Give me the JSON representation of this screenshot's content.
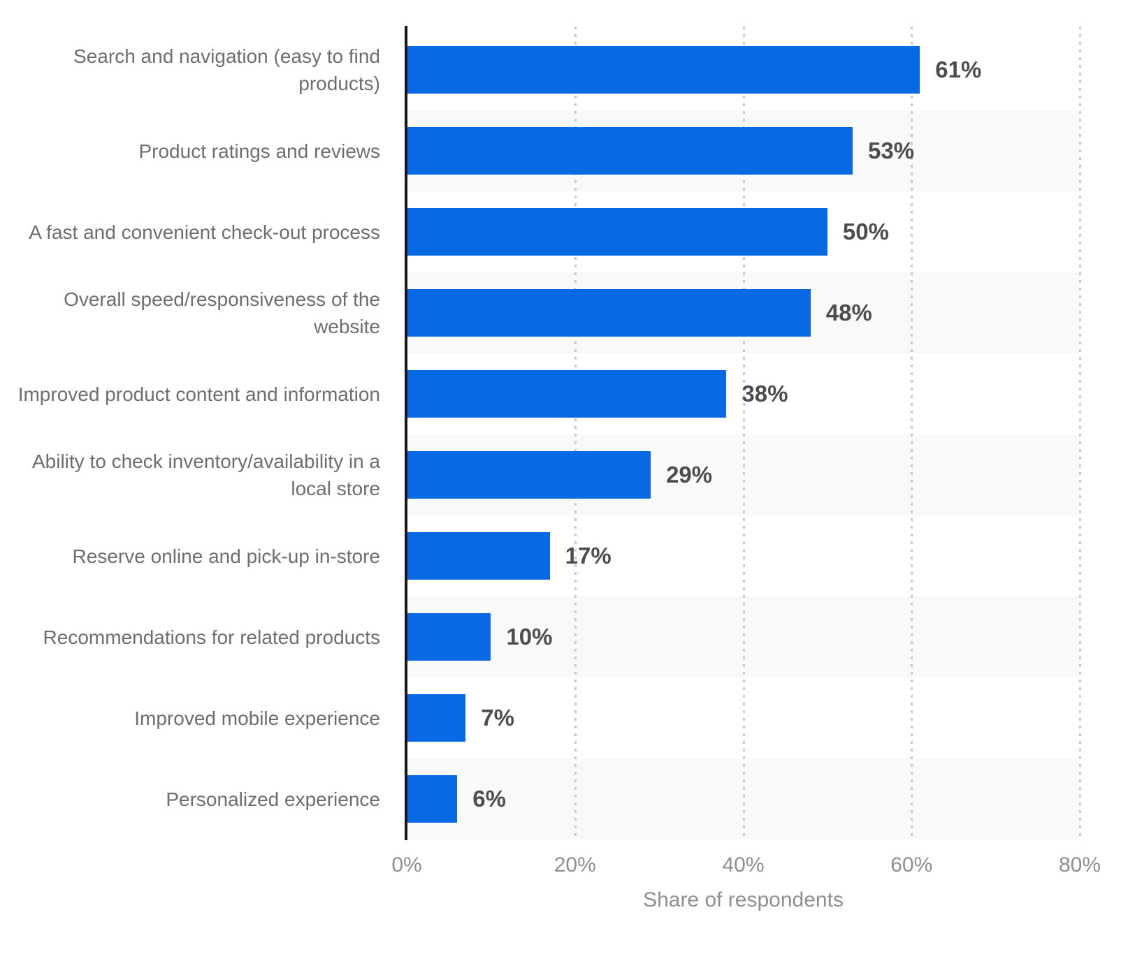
{
  "chart_data": {
    "type": "bar",
    "orientation": "horizontal",
    "title": "",
    "categories": [
      "Search and navigation (easy to find products)",
      "Product ratings and reviews",
      "A fast and convenient check-out process",
      "Overall speed/responsiveness of the website",
      "Improved product content and information",
      "Ability to check inventory/availability in a local store",
      "Reserve online and pick-up in-store",
      "Recommendations for related products",
      "Improved mobile experience",
      "Personalized experience"
    ],
    "values": [
      61,
      53,
      50,
      48,
      38,
      29,
      17,
      10,
      7,
      6
    ],
    "value_labels": [
      "61%",
      "53%",
      "50%",
      "48%",
      "38%",
      "29%",
      "17%",
      "10%",
      "7%",
      "6%"
    ],
    "xlabel": "Share of respondents",
    "ylabel": "",
    "xlim": [
      0,
      80
    ],
    "x_tick_labels": [
      "0%",
      "20%",
      "40%",
      "60%",
      "80%"
    ],
    "x_tick_values": [
      0,
      20,
      40,
      60,
      80
    ],
    "grid": "vertical-dotted",
    "legend": "none",
    "row_striping": "alternate-even-rows-shaded",
    "colors": {
      "bar": "#0769e4",
      "row_stripe": "#f9f9f9",
      "background": "#ffffff",
      "category_label": "#6e6e6e",
      "value_label": "#4d4d4d",
      "tick_label": "#8f8f8f",
      "axis_title": "#8f8f8f",
      "axis_line": "#161616",
      "gridline": "#c9c9c9"
    }
  }
}
